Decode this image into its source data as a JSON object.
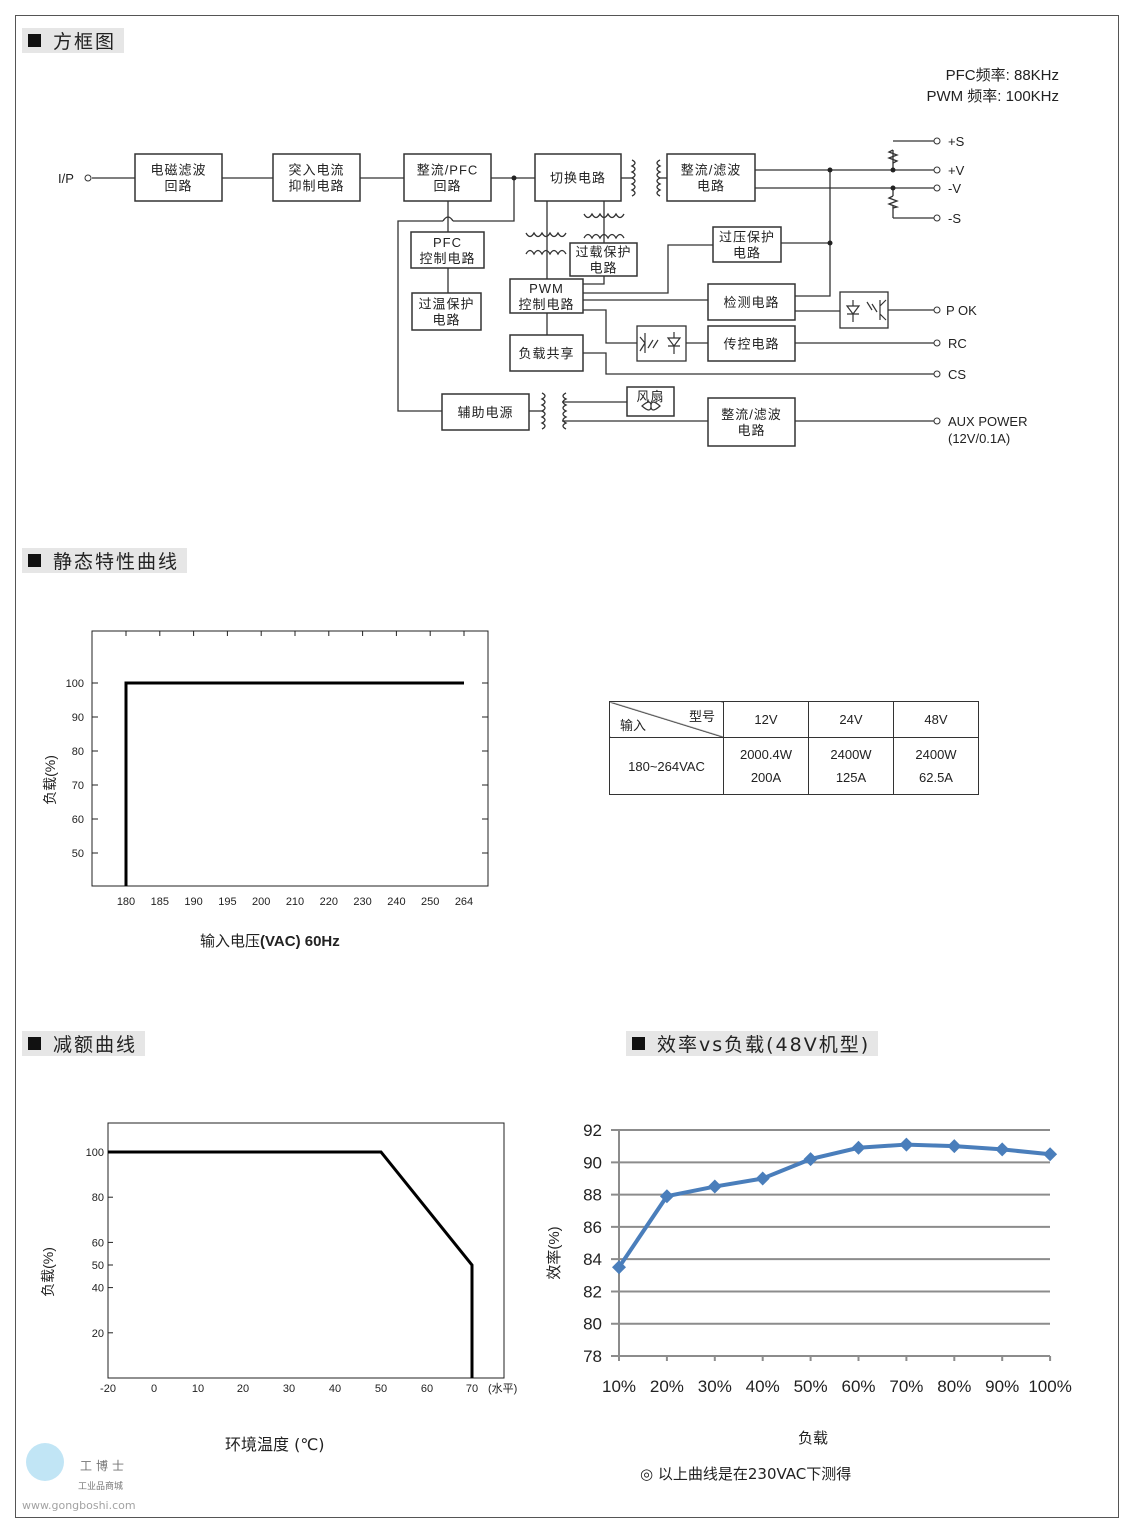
{
  "sections": {
    "block_diagram": "方框图",
    "static_curve": "静态特性曲线",
    "derating_curve": "减额曲线",
    "efficiency": "效率vs负载(48V机型)"
  },
  "freq_notes": [
    "PFC频率: 88KHz",
    "PWM 频率: 100KHz"
  ],
  "block_diagram": {
    "input_label": "I/P",
    "blocks": {
      "emi": [
        "电磁滤波",
        "回路"
      ],
      "inrush": [
        "突入电流",
        "抑制电路"
      ],
      "rect_pfc": [
        "整流/PFC",
        "回路"
      ],
      "switching": [
        "切换电路"
      ],
      "rect_filter": [
        "整流/滤波",
        "电路"
      ],
      "pfc_ctrl": [
        "PFC",
        "控制电路"
      ],
      "otp": [
        "过温保护",
        "电路"
      ],
      "olp": [
        "过载保护",
        "电路"
      ],
      "pwm": [
        "PWM",
        "控制电路"
      ],
      "load_share": [
        "负载共享"
      ],
      "ovp": [
        "过压保护",
        "电路"
      ],
      "detect": [
        "检测电路"
      ],
      "remote": [
        "传控电路"
      ],
      "aux": [
        "辅助电源"
      ],
      "fan": [
        "风扇"
      ],
      "aux_rect": [
        "整流/滤波",
        "电路"
      ]
    },
    "outputs": [
      "+S",
      "+V",
      "-V",
      "-S",
      "P OK",
      "RC",
      "CS",
      "AUX POWER",
      "(12V/0.1A)"
    ]
  },
  "spec_table": {
    "corner_model": "型号",
    "corner_input": "输入",
    "models": [
      "12V",
      "24V",
      "48V"
    ],
    "input": "180~264VAC",
    "power": [
      "2000.4W",
      "2400W",
      "2400W"
    ],
    "current": [
      "200A",
      "125A",
      "62.5A"
    ]
  },
  "chart_data": [
    {
      "type": "line",
      "ylabel": "负载(%)",
      "xlabel_prefix": "输入电压",
      "xlabel_suffix": "(VAC) 60Hz",
      "x_ticks": [
        "180",
        "185",
        "190",
        "195",
        "200",
        "210",
        "220",
        "230",
        "240",
        "250",
        "264"
      ],
      "y_ticks": [
        50,
        60,
        70,
        80,
        90,
        100
      ],
      "ylim": [
        40,
        115
      ],
      "series": [
        {
          "points": [
            [
              180,
              0
            ],
            [
              180,
              100
            ],
            [
              264,
              100
            ]
          ]
        }
      ],
      "color": "#000000"
    },
    {
      "type": "line",
      "ylabel": "负载(%)",
      "xlabel": "环境温度 (℃)",
      "x_unit": "(水平)",
      "x_ticks": [
        -20,
        0,
        10,
        20,
        30,
        40,
        50,
        60,
        70
      ],
      "y_ticks": [
        20,
        40,
        50,
        60,
        80,
        100
      ],
      "ylim": [
        0,
        112
      ],
      "series": [
        {
          "points": [
            [
              -20,
              100
            ],
            [
              50,
              100
            ],
            [
              70,
              50
            ],
            [
              70,
              0
            ]
          ]
        }
      ],
      "color": "#000000"
    },
    {
      "type": "line",
      "ylabel": "效率(%)",
      "xlabel": "负载",
      "categories": [
        "10%",
        "20%",
        "30%",
        "40%",
        "50%",
        "60%",
        "70%",
        "80%",
        "90%",
        "100%"
      ],
      "values": [
        83.5,
        87.9,
        88.5,
        89.0,
        90.2,
        90.9,
        91.1,
        91.0,
        90.8,
        90.5
      ],
      "y_ticks": [
        78,
        80,
        82,
        84,
        86,
        88,
        90,
        92
      ],
      "ylim": [
        78,
        92
      ],
      "grid": true,
      "color": "#4a7ebb"
    }
  ],
  "footnote": "◎ 以上曲线是在230VAC下测得",
  "watermark": {
    "brand": "工博士",
    "tagline": "工业品商城",
    "url": "www.gongboshi.com"
  }
}
